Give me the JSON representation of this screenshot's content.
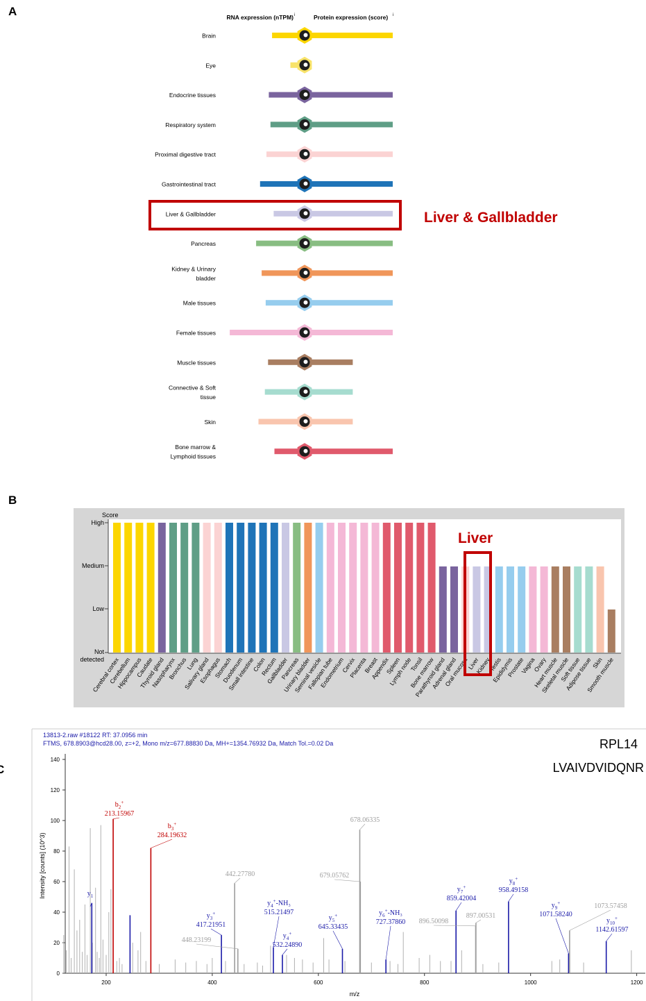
{
  "panels": {
    "a": {
      "letter": "A"
    },
    "b": {
      "letter": "B"
    },
    "c": {
      "letter": "C"
    }
  },
  "chart_data": [
    {
      "type": "bar",
      "panel": "A",
      "headers": {
        "rna": "RNA expression (nTPM)",
        "protein": "Protein expression (score)"
      },
      "highlight": {
        "label": "Liver & Gallbladder",
        "color": "#c00000"
      },
      "rows": [
        {
          "label": [
            "Brain"
          ],
          "color": "#fcd600",
          "rna": 0.33,
          "protein": 1.0
        },
        {
          "label": [
            "Eye"
          ],
          "color": "#f8e36a",
          "rna": 0.1,
          "protein": 0.0
        },
        {
          "label": [
            "Endocrine tissues"
          ],
          "color": "#7a649e",
          "rna": 0.37,
          "protein": 1.0
        },
        {
          "label": [
            "Respiratory system"
          ],
          "color": "#5f9e86",
          "rna": 0.35,
          "protein": 1.0
        },
        {
          "label": [
            "Proximal digestive tract"
          ],
          "color": "#fbd3d3",
          "rna": 0.4,
          "protein": 1.0
        },
        {
          "label": [
            "Gastrointestinal tract"
          ],
          "color": "#1f74b8",
          "rna": 0.48,
          "protein": 1.0
        },
        {
          "label": [
            "Liver & Gallbladder"
          ],
          "color": "#c9c8e4",
          "rna": 0.31,
          "protein": 1.0
        },
        {
          "label": [
            "Pancreas"
          ],
          "color": "#88bd82",
          "rna": 0.53,
          "protein": 1.0
        },
        {
          "label": [
            "Kidney & Urinary",
            "bladder"
          ],
          "color": "#f0965a",
          "rna": 0.46,
          "protein": 1.0
        },
        {
          "label": [
            "Male tissues"
          ],
          "color": "#96cdee",
          "rna": 0.41,
          "protein": 1.0
        },
        {
          "label": [
            "Female tissues"
          ],
          "color": "#f4b8d6",
          "rna": 0.86,
          "protein": 1.0
        },
        {
          "label": [
            "Muscle tissues"
          ],
          "color": "#a97e61",
          "rna": 0.38,
          "protein": 0.49
        },
        {
          "label": [
            "Connective & Soft",
            "tissue"
          ],
          "color": "#a6dccf",
          "rna": 0.42,
          "protein": 0.49
        },
        {
          "label": [
            "Skin"
          ],
          "color": "#f9c5ae",
          "rna": 0.5,
          "protein": 0.49
        },
        {
          "label": [
            "Bone marrow &",
            "Lymphoid tissues"
          ],
          "color": "#e05a6c",
          "rna": 0.3,
          "protein": 1.0
        }
      ]
    },
    {
      "type": "bar",
      "panel": "B",
      "ylabel": "Score",
      "yticks": [
        "High",
        "Medium",
        "Low",
        "Not detected"
      ],
      "highlight": {
        "label": "Liver",
        "color": "#c00000"
      },
      "categories": [
        "Cerebral cortex",
        "Cerebellum",
        "Hippocampus",
        "Caudate",
        "Thyroid gland",
        "Nasopharynx",
        "Bronchus",
        "Lung",
        "Salivary gland",
        "Esophagus",
        "Stomach",
        "Duodenum",
        "Small intestine",
        "Colon",
        "Rectum",
        "Gallbladder",
        "Pancreas",
        "Urinary bladder",
        "Seminal vesicle",
        "Fallopian tube",
        "Endometrium",
        "Cervix",
        "Placenta",
        "Breast",
        "Appendix",
        "Spleen",
        "Lymph node",
        "Tonsil",
        "Bone marrow",
        "Parathyroid gland",
        "Adrenal gland",
        "Oral mucosa",
        "Liver",
        "Kidney",
        "Testis",
        "Epididymis",
        "Prostate",
        "Vagina",
        "Ovary",
        "Heart muscle",
        "Skeletal muscle",
        "Soft tissue",
        "Adipose tissue",
        "Skin",
        "Smooth muscle"
      ],
      "values": [
        3,
        3,
        3,
        3,
        3,
        3,
        3,
        3,
        3,
        3,
        3,
        3,
        3,
        3,
        3,
        3,
        3,
        3,
        3,
        3,
        3,
        3,
        3,
        3,
        3,
        3,
        3,
        3,
        3,
        2,
        2,
        2,
        2,
        2,
        2,
        2,
        2,
        2,
        2,
        2,
        2,
        2,
        2,
        2,
        1
      ],
      "colors": [
        "#fcd600",
        "#fcd600",
        "#fcd600",
        "#fcd600",
        "#7a649e",
        "#5f9e86",
        "#5f9e86",
        "#5f9e86",
        "#fbd3d3",
        "#fbd3d3",
        "#1f74b8",
        "#1f74b8",
        "#1f74b8",
        "#1f74b8",
        "#1f74b8",
        "#c9c8e4",
        "#88bd82",
        "#f0965a",
        "#96cdee",
        "#f4b8d6",
        "#f4b8d6",
        "#f4b8d6",
        "#f4b8d6",
        "#f4b8d6",
        "#e05a6c",
        "#e05a6c",
        "#e05a6c",
        "#e05a6c",
        "#e05a6c",
        "#7a649e",
        "#7a649e",
        "#fbd3d3",
        "#c9c8e4",
        "#c9c8e4",
        "#96cdee",
        "#96cdee",
        "#96cdee",
        "#f4b8d6",
        "#f4b8d6",
        "#a97e61",
        "#a97e61",
        "#a6dccf",
        "#a6dccf",
        "#f9c5ae",
        "#a97e61"
      ]
    },
    {
      "type": "bar",
      "panel": "C",
      "header": [
        "13813-2.raw  #18122  RT: 37.0956 min",
        "FTMS, 678.8903@hcd28.00, z=+2, Mono m/z=677.88830 Da, MH+=1354.76932 Da, Match Tol.=0.02 Da"
      ],
      "protein": "RPL14",
      "peptide": "LVAIVDVIDQNR",
      "xlabel": "m/z",
      "ylabel": "Intensity [counts] (10^3)",
      "xlim": [
        115,
        1200
      ],
      "ylim": [
        0,
        140
      ],
      "xticks": [
        200,
        400,
        600,
        800,
        1000,
        1200
      ],
      "yticks": [
        0,
        20,
        40,
        60,
        80,
        100,
        120,
        140
      ],
      "background_peaks": [
        [
          120,
          25
        ],
        [
          125,
          15
        ],
        [
          130,
          83
        ],
        [
          134,
          10
        ],
        [
          140,
          68
        ],
        [
          145,
          28
        ],
        [
          150,
          35
        ],
        [
          155,
          14
        ],
        [
          160,
          45
        ],
        [
          164,
          12
        ],
        [
          170,
          95
        ],
        [
          174,
          20
        ],
        [
          180,
          56
        ],
        [
          183,
          14
        ],
        [
          187,
          10
        ],
        [
          190,
          97
        ],
        [
          194,
          22
        ],
        [
          200,
          12
        ],
        [
          205,
          40
        ],
        [
          209,
          55
        ],
        [
          220,
          8
        ],
        [
          225,
          10
        ],
        [
          230,
          6
        ],
        [
          250,
          20
        ],
        [
          260,
          15
        ],
        [
          265,
          27
        ],
        [
          275,
          8
        ],
        [
          300,
          6
        ],
        [
          330,
          9
        ],
        [
          350,
          7
        ],
        [
          370,
          8
        ],
        [
          390,
          6
        ],
        [
          400,
          10
        ],
        [
          425,
          8
        ],
        [
          460,
          6
        ],
        [
          485,
          7
        ],
        [
          495,
          5
        ],
        [
          510,
          18
        ],
        [
          540,
          12
        ],
        [
          555,
          10
        ],
        [
          570,
          9
        ],
        [
          590,
          7
        ],
        [
          610,
          23
        ],
        [
          620,
          9
        ],
        [
          650,
          8
        ],
        [
          700,
          7
        ],
        [
          735,
          8
        ],
        [
          750,
          6
        ],
        [
          760,
          27
        ],
        [
          790,
          10
        ],
        [
          810,
          12
        ],
        [
          830,
          8
        ],
        [
          850,
          8
        ],
        [
          870,
          15
        ],
        [
          910,
          6
        ],
        [
          940,
          7
        ],
        [
          1040,
          8
        ],
        [
          1055,
          9
        ],
        [
          1100,
          7
        ],
        [
          1190,
          15
        ]
      ],
      "peaks": [
        {
          "mz": 173.0,
          "intensity": 46,
          "color": "#1a1aa8",
          "ion": "y",
          "sub": "1",
          "charge": "",
          "loss": "",
          "value": ""
        },
        {
          "mz": 213.16,
          "intensity": 101,
          "color": "#c00000",
          "ion": "b",
          "sub": "2",
          "charge": "+",
          "loss": "",
          "value": "213.15967"
        },
        {
          "mz": 245.0,
          "intensity": 38,
          "color": "#1a1aa8",
          "ion": "",
          "sub": "",
          "charge": "",
          "loss": "",
          "value": ""
        },
        {
          "mz": 284.2,
          "intensity": 82,
          "color": "#c00000",
          "ion": "b",
          "sub": "3",
          "charge": "+",
          "loss": "",
          "value": "284.19632"
        },
        {
          "mz": 417.2,
          "intensity": 25,
          "color": "#1a1aa8",
          "ion": "y",
          "sub": "3",
          "charge": "+",
          "loss": "",
          "value": "417.21951"
        },
        {
          "mz": 442.28,
          "intensity": 59,
          "color": "#9e9e9e",
          "ion": "",
          "sub": "",
          "charge": "",
          "loss": "",
          "value": "442.27780"
        },
        {
          "mz": 448.23,
          "intensity": 16,
          "color": "#9e9e9e",
          "ion": "",
          "sub": "",
          "charge": "",
          "loss": "",
          "value": "448.23199"
        },
        {
          "mz": 515.2,
          "intensity": 17,
          "color": "#1a1aa8",
          "ion": "y",
          "sub": "4",
          "charge": "+",
          "loss": "-NH₃",
          "value": "515.21497"
        },
        {
          "mz": 532.2,
          "intensity": 12,
          "color": "#1a1aa8",
          "ion": "y",
          "sub": "4",
          "charge": "+",
          "loss": "",
          "value": "532.24890"
        },
        {
          "mz": 645.3,
          "intensity": 16,
          "color": "#1a1aa8",
          "ion": "y",
          "sub": "5",
          "charge": "+",
          "loss": "",
          "value": "645.33435"
        },
        {
          "mz": 678.06,
          "intensity": 94,
          "color": "#9e9e9e",
          "ion": "",
          "sub": "",
          "charge": "",
          "loss": "",
          "value": "678.06335"
        },
        {
          "mz": 679.06,
          "intensity": 60,
          "color": "#9e9e9e",
          "ion": "",
          "sub": "",
          "charge": "",
          "loss": "",
          "value": "679.05762"
        },
        {
          "mz": 727.4,
          "intensity": 9,
          "color": "#1a1aa8",
          "ion": "y",
          "sub": "6",
          "charge": "+",
          "loss": "-NH₃",
          "value": "727.37860"
        },
        {
          "mz": 859.4,
          "intensity": 41,
          "color": "#1a1aa8",
          "ion": "y",
          "sub": "7",
          "charge": "+",
          "loss": "",
          "value": "859.42004"
        },
        {
          "mz": 896.5,
          "intensity": 31,
          "color": "#9e9e9e",
          "ion": "",
          "sub": "",
          "charge": "",
          "loss": "",
          "value": "896.50098"
        },
        {
          "mz": 897.0,
          "intensity": 33,
          "color": "#9e9e9e",
          "ion": "",
          "sub": "",
          "charge": "",
          "loss": "",
          "value": "897.00531"
        },
        {
          "mz": 958.5,
          "intensity": 47,
          "color": "#1a1aa8",
          "ion": "y",
          "sub": "8",
          "charge": "+",
          "loss": "",
          "value": "958.49158"
        },
        {
          "mz": 1071.6,
          "intensity": 13,
          "color": "#1a1aa8",
          "ion": "y",
          "sub": "9",
          "charge": "+",
          "loss": "",
          "value": "1071.58240"
        },
        {
          "mz": 1073.6,
          "intensity": 28,
          "color": "#9e9e9e",
          "ion": "",
          "sub": "",
          "charge": "",
          "loss": "",
          "value": "1073.57458"
        },
        {
          "mz": 1142.6,
          "intensity": 21,
          "color": "#1a1aa8",
          "ion": "y",
          "sub": "10",
          "charge": "+",
          "loss": "",
          "value": "1142.61597"
        }
      ]
    }
  ]
}
